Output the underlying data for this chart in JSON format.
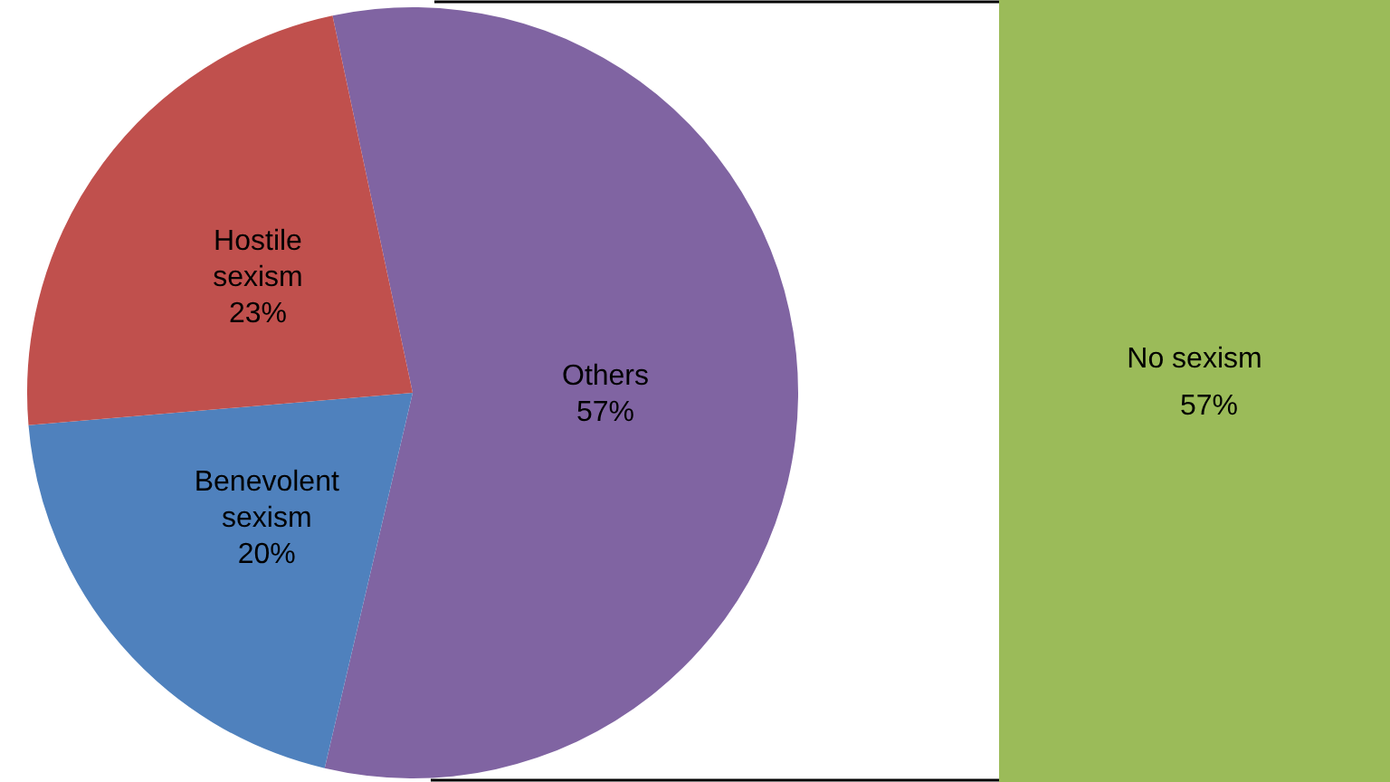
{
  "chart_data": [
    {
      "type": "pie",
      "categories": [
        "Others",
        "Benevolent sexism",
        "Hostile sexism"
      ],
      "values": [
        57,
        20,
        23
      ],
      "colors": [
        "#8064a2",
        "#4f81bd",
        "#c0504d"
      ],
      "value_labels": [
        "57%",
        "20%",
        "23%"
      ],
      "legend": false
    },
    {
      "type": "other",
      "categories": [
        "No sexism"
      ],
      "values": [
        57
      ],
      "value_labels": [
        "57%"
      ],
      "colors": [
        "#9bbb59"
      ]
    }
  ]
}
